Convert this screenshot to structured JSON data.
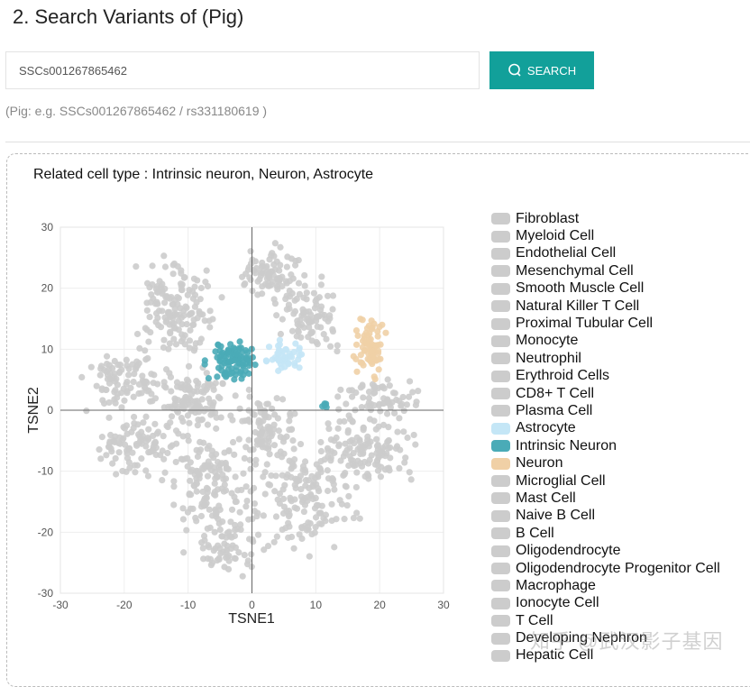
{
  "page_title": "2. Search Variants of (Pig)",
  "search": {
    "value": "SSCs001267865462",
    "button_label": "SEARCH",
    "hint": "(Pig: e.g. SSCs001267865462 / rs331180619 )"
  },
  "related": "Related cell type : Intrinsic neuron, Neuron, Astrocyte",
  "watermark": "知乎 @武汉影子基因",
  "colors": {
    "accent": "#12a09a",
    "gray": "#cccccc",
    "astrocyte": "#c4e6f6",
    "intrinsic_neuron": "#4aabb7",
    "neuron": "#f0d0a6"
  },
  "chart_data": {
    "type": "scatter",
    "xlabel": "TSNE1",
    "ylabel": "TSNE2",
    "xlim": [
      -30,
      30
    ],
    "ylim": [
      -30,
      30
    ],
    "xticks": [
      "-30",
      "-20",
      "-10",
      "0",
      "10",
      "20",
      "30"
    ],
    "yticks": [
      "30",
      "20",
      "10",
      "0",
      "-10",
      "-20",
      "-30"
    ],
    "grid": true,
    "legend_position": "right",
    "legend": [
      "Fibroblast",
      "Myeloid Cell",
      "Endothelial Cell",
      "Mesenchymal Cell",
      "Smooth Muscle Cell",
      "Natural Killer T Cell",
      "Proximal Tubular Cell",
      "Monocyte",
      "Neutrophil",
      "Erythroid Cells",
      "CD8+ T Cell",
      "Plasma Cell",
      "Astrocyte",
      "Intrinsic Neuron",
      "Neuron",
      "Microglial Cell",
      "Mast Cell",
      "Naive B Cell",
      "B Cell",
      "Oligodendrocyte",
      "Oligodendrocyte Progenitor Cell",
      "Macrophage",
      "Ionocyte Cell",
      "T Cell",
      "Developing Nephron",
      "Hepatic Cell"
    ],
    "highlighted": {
      "Astrocyte": "#c4e6f6",
      "Intrinsic Neuron": "#4aabb7",
      "Neuron": "#f0d0a6"
    },
    "clusters": [
      {
        "name": "Intrinsic Neuron",
        "center": [
          -3,
          8
        ],
        "spread": [
          2.3,
          2
        ],
        "n": 90
      },
      {
        "name": "Intrinsic Neuron",
        "center": [
          11.5,
          0.5
        ],
        "spread": [
          0.6,
          0.5
        ],
        "n": 5
      },
      {
        "name": "Astrocyte",
        "center": [
          5.5,
          9
        ],
        "spread": [
          2,
          1.6
        ],
        "n": 45
      },
      {
        "name": "Neuron",
        "center": [
          18.5,
          10
        ],
        "spread": [
          1.6,
          3
        ],
        "n": 70
      },
      {
        "name": "other",
        "center": [
          -12,
          17
        ],
        "spread": [
          4,
          5
        ],
        "n": 150
      },
      {
        "name": "other",
        "center": [
          3,
          22
        ],
        "spread": [
          3,
          3
        ],
        "n": 90
      },
      {
        "name": "other",
        "center": [
          9,
          15
        ],
        "spread": [
          3,
          4
        ],
        "n": 80
      },
      {
        "name": "other",
        "center": [
          -20,
          5
        ],
        "spread": [
          4,
          3
        ],
        "n": 90
      },
      {
        "name": "other",
        "center": [
          -10,
          2
        ],
        "spread": [
          4,
          3
        ],
        "n": 110
      },
      {
        "name": "other",
        "center": [
          -18,
          -6
        ],
        "spread": [
          5,
          3
        ],
        "n": 100
      },
      {
        "name": "other",
        "center": [
          -6,
          -12
        ],
        "spread": [
          4,
          6
        ],
        "n": 150
      },
      {
        "name": "other",
        "center": [
          8,
          -14
        ],
        "spread": [
          5,
          6
        ],
        "n": 160
      },
      {
        "name": "other",
        "center": [
          18,
          -6
        ],
        "spread": [
          5,
          4
        ],
        "n": 130
      },
      {
        "name": "other",
        "center": [
          2,
          -3
        ],
        "spread": [
          3,
          4
        ],
        "n": 90
      },
      {
        "name": "other",
        "center": [
          -4,
          -22
        ],
        "spread": [
          4,
          3
        ],
        "n": 60
      },
      {
        "name": "other",
        "center": [
          20,
          2
        ],
        "spread": [
          4,
          2
        ],
        "n": 60
      }
    ]
  }
}
